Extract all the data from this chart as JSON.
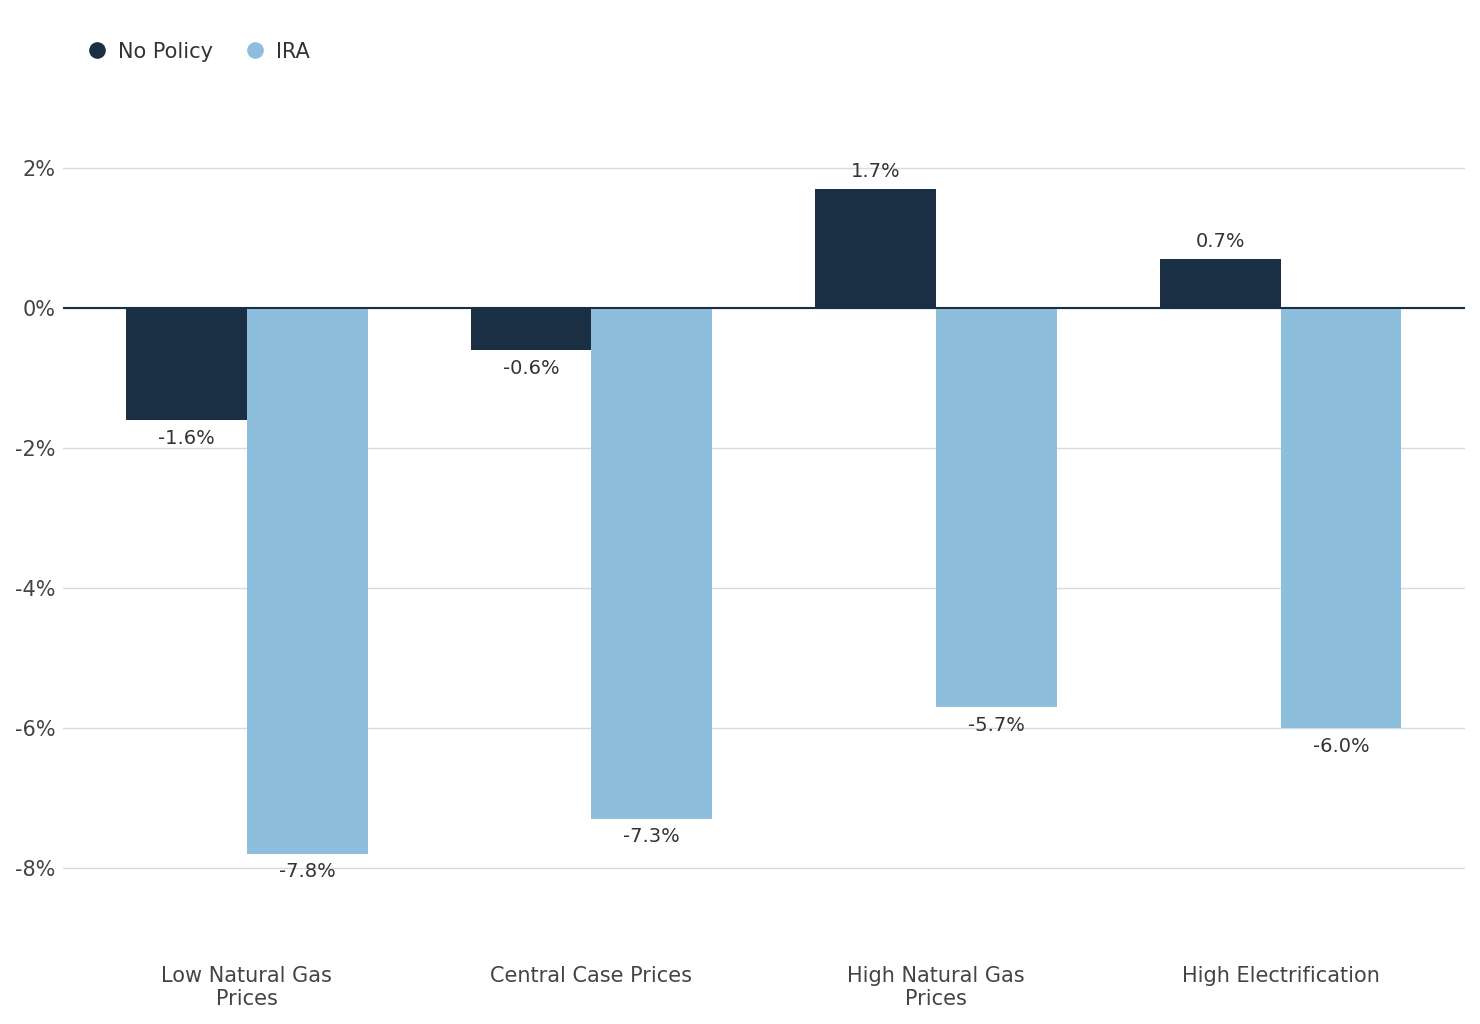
{
  "categories": [
    "Low Natural Gas\nPrices",
    "Central Case Prices",
    "High Natural Gas\nPrices",
    "High Electrification"
  ],
  "no_policy_values": [
    -1.6,
    -0.6,
    1.7,
    0.7
  ],
  "ira_values": [
    -7.8,
    -7.3,
    -5.7,
    -6.0
  ],
  "no_policy_color": "#1a2e44",
  "ira_color": "#8dbfdc",
  "bar_width": 0.35,
  "ylim": [
    -9,
    3
  ],
  "yticks": [
    -8,
    -6,
    -4,
    -2,
    0,
    2
  ],
  "ytick_labels": [
    "-8%",
    "-6%",
    "-4%",
    "-2%",
    "0%",
    "2%"
  ],
  "legend_labels": [
    "No Policy",
    "IRA"
  ],
  "background_color": "#ffffff",
  "grid_color": "#d0dce8",
  "axis_line_color": "#1a2e44",
  "label_fontsize": 15,
  "tick_fontsize": 15,
  "legend_fontsize": 15,
  "annotation_fontsize": 14
}
